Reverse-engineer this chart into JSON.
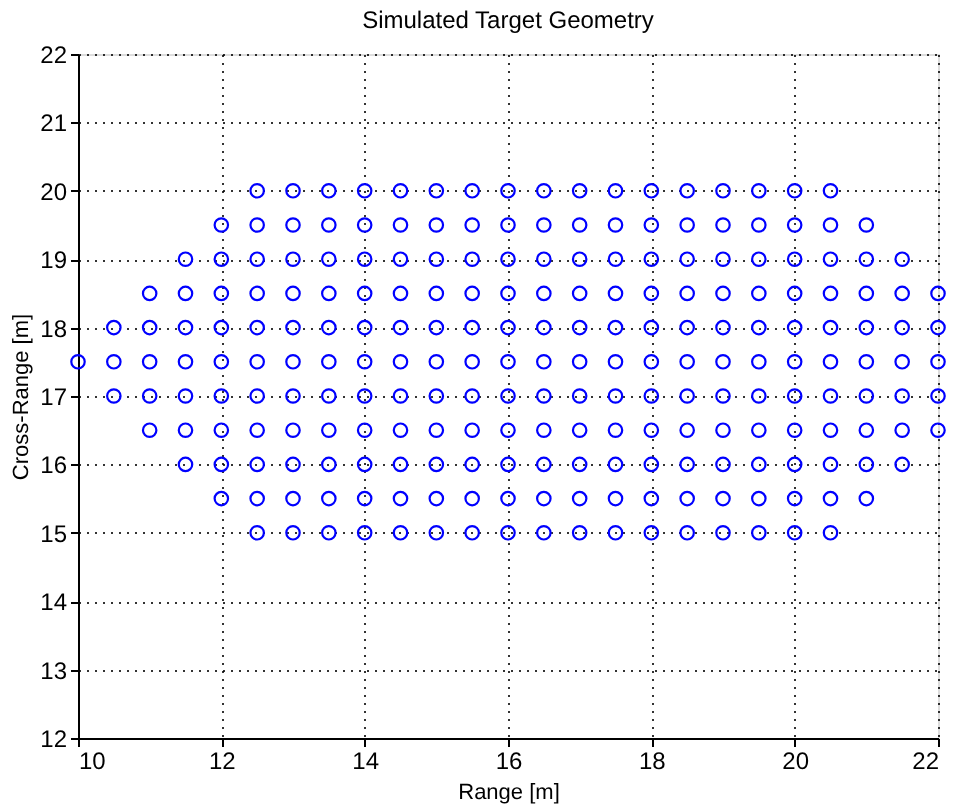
{
  "chart_data": {
    "type": "scatter",
    "title": "Simulated Target Geometry",
    "xlabel": "Range [m]",
    "ylabel": "Cross-Range [m]",
    "xlim": [
      10,
      22
    ],
    "xticks": [
      10,
      12,
      14,
      16,
      18,
      20,
      22
    ],
    "ylim": [
      12,
      22
    ],
    "yticks": [
      12,
      13,
      14,
      15,
      16,
      17,
      18,
      19,
      20,
      21,
      22
    ],
    "grid": true,
    "marker": "circle",
    "series": [
      {
        "color": "#0000ff",
        "x": [
          12.5,
          13,
          13.5,
          14,
          14.5,
          15,
          15.5,
          16,
          16.5,
          17,
          17.5,
          18,
          18.5,
          19,
          19.5,
          20,
          20.5
        ],
        "values": [
          20,
          20,
          20,
          20,
          20,
          20,
          20,
          20,
          20,
          20,
          20,
          20,
          20,
          20,
          20,
          20,
          20
        ]
      },
      {
        "color": "#0000ff",
        "x": [
          12,
          12.5,
          13,
          13.5,
          14,
          14.5,
          15,
          15.5,
          16,
          16.5,
          17,
          17.5,
          18,
          18.5,
          19,
          19.5,
          20,
          20.5,
          21
        ],
        "values": [
          19.5,
          19.5,
          19.5,
          19.5,
          19.5,
          19.5,
          19.5,
          19.5,
          19.5,
          19.5,
          19.5,
          19.5,
          19.5,
          19.5,
          19.5,
          19.5,
          19.5,
          19.5,
          19.5
        ]
      },
      {
        "color": "#0000ff",
        "x": [
          11.5,
          12,
          12.5,
          13,
          13.5,
          14,
          14.5,
          15,
          15.5,
          16,
          16.5,
          17,
          17.5,
          18,
          18.5,
          19,
          19.5,
          20,
          20.5,
          21,
          21.5
        ],
        "values": [
          19,
          19,
          19,
          19,
          19,
          19,
          19,
          19,
          19,
          19,
          19,
          19,
          19,
          19,
          19,
          19,
          19,
          19,
          19,
          19,
          19
        ]
      },
      {
        "color": "#0000ff",
        "x": [
          11,
          11.5,
          12,
          12.5,
          13,
          13.5,
          14,
          14.5,
          15,
          15.5,
          16,
          16.5,
          17,
          17.5,
          18,
          18.5,
          19,
          19.5,
          20,
          20.5,
          21,
          21.5,
          22
        ],
        "values": [
          18.5,
          18.5,
          18.5,
          18.5,
          18.5,
          18.5,
          18.5,
          18.5,
          18.5,
          18.5,
          18.5,
          18.5,
          18.5,
          18.5,
          18.5,
          18.5,
          18.5,
          18.5,
          18.5,
          18.5,
          18.5,
          18.5,
          18.5
        ]
      },
      {
        "color": "#0000ff",
        "x": [
          10.5,
          11,
          11.5,
          12,
          12.5,
          13,
          13.5,
          14,
          14.5,
          15,
          15.5,
          16,
          16.5,
          17,
          17.5,
          18,
          18.5,
          19,
          19.5,
          20,
          20.5,
          21,
          21.5,
          22
        ],
        "values": [
          18,
          18,
          18,
          18,
          18,
          18,
          18,
          18,
          18,
          18,
          18,
          18,
          18,
          18,
          18,
          18,
          18,
          18,
          18,
          18,
          18,
          18,
          18,
          18
        ]
      },
      {
        "color": "#0000ff",
        "x": [
          10,
          10.5,
          11,
          11.5,
          12,
          12.5,
          13,
          13.5,
          14,
          14.5,
          15,
          15.5,
          16,
          16.5,
          17,
          17.5,
          18,
          18.5,
          19,
          19.5,
          20,
          20.5,
          21,
          21.5,
          22
        ],
        "values": [
          17.5,
          17.5,
          17.5,
          17.5,
          17.5,
          17.5,
          17.5,
          17.5,
          17.5,
          17.5,
          17.5,
          17.5,
          17.5,
          17.5,
          17.5,
          17.5,
          17.5,
          17.5,
          17.5,
          17.5,
          17.5,
          17.5,
          17.5,
          17.5,
          17.5
        ]
      },
      {
        "color": "#0000ff",
        "x": [
          10.5,
          11,
          11.5,
          12,
          12.5,
          13,
          13.5,
          14,
          14.5,
          15,
          15.5,
          16,
          16.5,
          17,
          17.5,
          18,
          18.5,
          19,
          19.5,
          20,
          20.5,
          21,
          21.5,
          22
        ],
        "values": [
          17,
          17,
          17,
          17,
          17,
          17,
          17,
          17,
          17,
          17,
          17,
          17,
          17,
          17,
          17,
          17,
          17,
          17,
          17,
          17,
          17,
          17,
          17,
          17
        ]
      },
      {
        "color": "#0000ff",
        "x": [
          11,
          11.5,
          12,
          12.5,
          13,
          13.5,
          14,
          14.5,
          15,
          15.5,
          16,
          16.5,
          17,
          17.5,
          18,
          18.5,
          19,
          19.5,
          20,
          20.5,
          21,
          21.5,
          22
        ],
        "values": [
          16.5,
          16.5,
          16.5,
          16.5,
          16.5,
          16.5,
          16.5,
          16.5,
          16.5,
          16.5,
          16.5,
          16.5,
          16.5,
          16.5,
          16.5,
          16.5,
          16.5,
          16.5,
          16.5,
          16.5,
          16.5,
          16.5,
          16.5
        ]
      },
      {
        "color": "#0000ff",
        "x": [
          11.5,
          12,
          12.5,
          13,
          13.5,
          14,
          14.5,
          15,
          15.5,
          16,
          16.5,
          17,
          17.5,
          18,
          18.5,
          19,
          19.5,
          20,
          20.5,
          21,
          21.5
        ],
        "values": [
          16,
          16,
          16,
          16,
          16,
          16,
          16,
          16,
          16,
          16,
          16,
          16,
          16,
          16,
          16,
          16,
          16,
          16,
          16,
          16,
          16
        ]
      },
      {
        "color": "#0000ff",
        "x": [
          12,
          12.5,
          13,
          13.5,
          14,
          14.5,
          15,
          15.5,
          16,
          16.5,
          17,
          17.5,
          18,
          18.5,
          19,
          19.5,
          20,
          20.5,
          21
        ],
        "values": [
          15.5,
          15.5,
          15.5,
          15.5,
          15.5,
          15.5,
          15.5,
          15.5,
          15.5,
          15.5,
          15.5,
          15.5,
          15.5,
          15.5,
          15.5,
          15.5,
          15.5,
          15.5,
          15.5
        ]
      },
      {
        "color": "#0000ff",
        "x": [
          12.5,
          13,
          13.5,
          14,
          14.5,
          15,
          15.5,
          16,
          16.5,
          17,
          17.5,
          18,
          18.5,
          19,
          19.5,
          20,
          20.5
        ],
        "values": [
          15,
          15,
          15,
          15,
          15,
          15,
          15,
          15,
          15,
          15,
          15,
          15,
          15,
          15,
          15,
          15,
          15
        ]
      }
    ]
  }
}
